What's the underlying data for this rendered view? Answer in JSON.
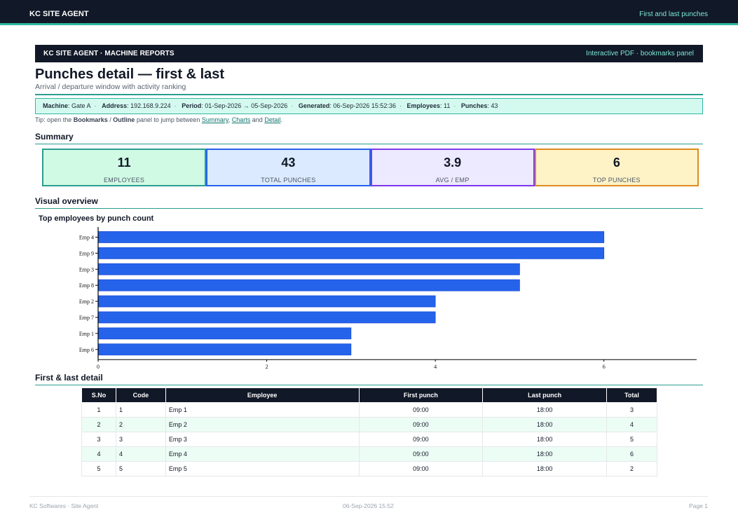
{
  "topbar": {
    "brand": "KC SITE AGENT",
    "title": "First and last punches"
  },
  "banner": {
    "left": "KC SITE AGENT · MACHINE REPORTS",
    "right": "Interactive PDF · bookmarks panel"
  },
  "page": {
    "title": "Punches detail — first & last",
    "subtitle": "Arrival / departure window with activity ranking"
  },
  "meta": [
    {
      "label": "Machine",
      "value": "Gate A"
    },
    {
      "label": "Address",
      "value": "192.168.9.224"
    },
    {
      "label": "Period",
      "value": "01-Sep-2026 → 05-Sep-2026"
    },
    {
      "label": "Generated",
      "value": "06-Sep-2026 15:52:36"
    },
    {
      "label": "Employees",
      "value": "11"
    },
    {
      "label": "Punches",
      "value": "43"
    }
  ],
  "tip": {
    "prefix": "Tip: open the",
    "bookmarks": "Bookmarks",
    "slash": "/",
    "outline": "Outline",
    "middle": "panel to jump between",
    "link_summary": "Summary",
    "link_charts": "Charts",
    "and": "and",
    "link_detail": "Detail",
    "end": "."
  },
  "sections": {
    "summary": "Summary",
    "visual": "Visual overview",
    "detail": "First & last detail"
  },
  "kpis": [
    {
      "value": "11",
      "label": "EMPLOYEES",
      "bg": "#d1fae5",
      "border": "#2a9d8f"
    },
    {
      "value": "43",
      "label": "TOTAL PUNCHES",
      "bg": "#dbeafe",
      "border": "#2563eb"
    },
    {
      "value": "3.9",
      "label": "AVG / EMP",
      "bg": "#ede9fe",
      "border": "#7c3aed"
    },
    {
      "value": "6",
      "label": "TOP PUNCHES",
      "bg": "#fef3c7",
      "border": "#e08a1e"
    }
  ],
  "chart_data": {
    "type": "bar",
    "orientation": "horizontal",
    "title": "Top employees by punch count",
    "categories": [
      "Emp 4",
      "Emp 9",
      "Emp 3",
      "Emp 8",
      "Emp 2",
      "Emp 7",
      "Emp 1",
      "Emp 6"
    ],
    "values": [
      6,
      6,
      5,
      5,
      4,
      4,
      3,
      3
    ],
    "xlim": [
      0,
      7.1
    ],
    "xticks": [
      0,
      2,
      4,
      6
    ],
    "color": "#2563eb",
    "grid": false
  },
  "table": {
    "headers": [
      "S.No",
      "Code",
      "Employee",
      "First punch",
      "Last punch",
      "Total"
    ],
    "rows": [
      [
        "1",
        "1",
        "Emp 1",
        "09:00",
        "18:00",
        "3"
      ],
      [
        "2",
        "2",
        "Emp 2",
        "09:00",
        "18:00",
        "4"
      ],
      [
        "3",
        "3",
        "Emp 3",
        "09:00",
        "18:00",
        "5"
      ],
      [
        "4",
        "4",
        "Emp 4",
        "09:00",
        "18:00",
        "6"
      ],
      [
        "5",
        "5",
        "Emp 5",
        "09:00",
        "18:00",
        "2"
      ]
    ]
  },
  "footer": {
    "left": "KC Softwares · Site Agent",
    "center": "06-Sep-2026 15:52",
    "right": "Page 1"
  }
}
